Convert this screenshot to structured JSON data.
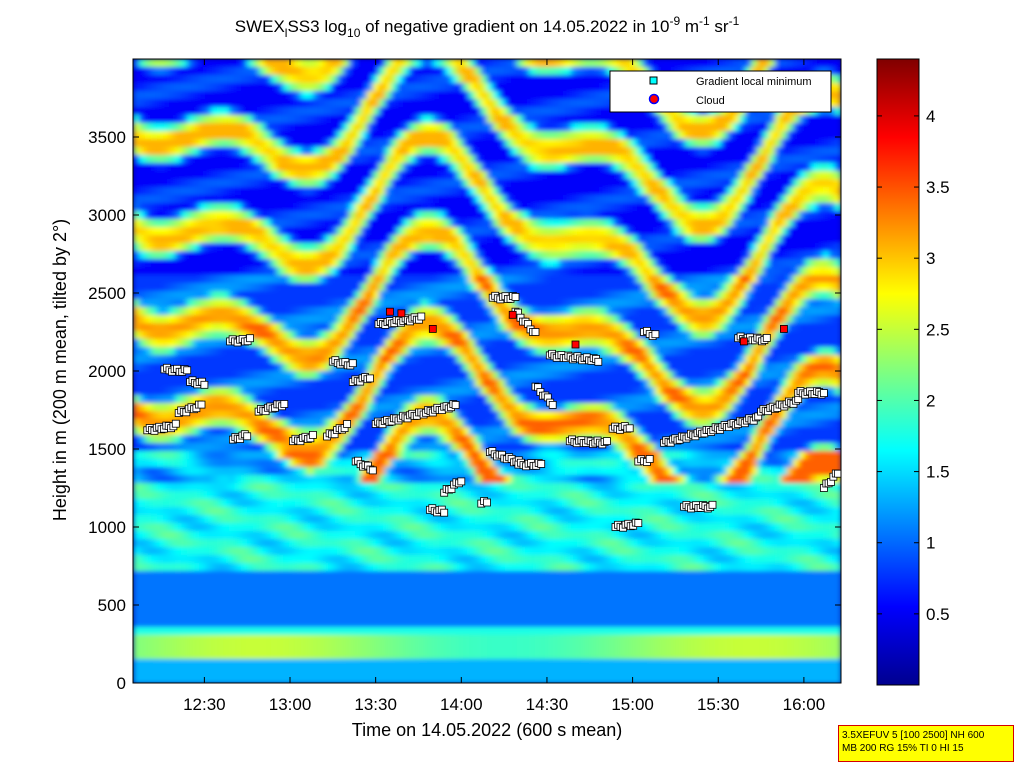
{
  "chart_data": {
    "type": "heatmap",
    "title": {
      "prefix": "SWEX",
      "sub1": "l",
      "mid1": "SS3 log",
      "sub2": "10",
      "mid2": " of negative gradient on 14.05.2022 in 10",
      "sup1": "-9",
      "mid3": " m",
      "sup2": "-1",
      "mid4": " sr",
      "sup3": "-1"
    },
    "xlabel": "Time on 14.05.2022 (600 s mean)",
    "ylabel": "Height in m (200 m mean, tilted by 2°)",
    "x_ticks": [
      "12:30",
      "13:00",
      "13:30",
      "14:00",
      "14:30",
      "15:00",
      "15:30",
      "16:00"
    ],
    "x_tick_minutes": [
      750,
      780,
      810,
      840,
      870,
      900,
      930,
      960
    ],
    "x_range_minutes": [
      725,
      973
    ],
    "y_ticks": [
      0,
      500,
      1000,
      1500,
      2000,
      2500,
      3000,
      3500
    ],
    "y_range": [
      0,
      4000
    ],
    "colorbar": {
      "ticks": [
        0.5,
        1,
        1.5,
        2,
        2.5,
        3,
        3.5,
        4
      ],
      "range": [
        0,
        4.4
      ],
      "colormap": "jet"
    },
    "legend": {
      "position": "top-right",
      "entries": [
        {
          "label": "Gradient local minimum",
          "marker": "square",
          "color": "#00ffff"
        },
        {
          "label": "Cloud",
          "marker": "circle",
          "color": "#ff0000"
        }
      ]
    },
    "gradient_minima_segments": [
      {
        "t0": 730,
        "t1": 740,
        "h0": 1620,
        "h1": 1650
      },
      {
        "t0": 736,
        "t1": 744,
        "h0": 2010,
        "h1": 2000
      },
      {
        "t0": 741,
        "t1": 749,
        "h0": 1730,
        "h1": 1780
      },
      {
        "t0": 745,
        "t1": 750,
        "h0": 1930,
        "h1": 1920
      },
      {
        "t0": 759,
        "t1": 766,
        "h0": 2190,
        "h1": 2200
      },
      {
        "t0": 760,
        "t1": 765,
        "h0": 1560,
        "h1": 1590
      },
      {
        "t0": 769,
        "t1": 778,
        "h0": 1740,
        "h1": 1790
      },
      {
        "t0": 781,
        "t1": 788,
        "h0": 1550,
        "h1": 1580
      },
      {
        "t0": 793,
        "t1": 800,
        "h0": 1580,
        "h1": 1650
      },
      {
        "t0": 795,
        "t1": 802,
        "h0": 2060,
        "h1": 2040
      },
      {
        "t0": 802,
        "t1": 808,
        "h0": 1930,
        "h1": 1960
      },
      {
        "t0": 803,
        "t1": 809,
        "h0": 1420,
        "h1": 1370
      },
      {
        "t0": 810,
        "t1": 838,
        "h0": 1660,
        "h1": 1780
      },
      {
        "t0": 811,
        "t1": 826,
        "h0": 2300,
        "h1": 2340
      },
      {
        "t0": 829,
        "t1": 834,
        "h0": 1110,
        "h1": 1100
      },
      {
        "t0": 834,
        "t1": 840,
        "h0": 1220,
        "h1": 1300
      },
      {
        "t0": 847,
        "t1": 849,
        "h0": 1150,
        "h1": 1160
      },
      {
        "t0": 850,
        "t1": 861,
        "h0": 1480,
        "h1": 1410
      },
      {
        "t0": 851,
        "t1": 859,
        "h0": 2470,
        "h1": 2470
      },
      {
        "t0": 859,
        "t1": 866,
        "h0": 2380,
        "h1": 2240
      },
      {
        "t0": 860,
        "t1": 868,
        "h0": 1400,
        "h1": 1400
      },
      {
        "t0": 866,
        "t1": 872,
        "h0": 1900,
        "h1": 1790
      },
      {
        "t0": 871,
        "t1": 888,
        "h0": 2100,
        "h1": 2070
      },
      {
        "t0": 878,
        "t1": 891,
        "h0": 1550,
        "h1": 1540
      },
      {
        "t0": 893,
        "t1": 899,
        "h0": 1630,
        "h1": 1640
      },
      {
        "t0": 894,
        "t1": 902,
        "h0": 1000,
        "h1": 1020
      },
      {
        "t0": 902,
        "t1": 906,
        "h0": 1420,
        "h1": 1430
      },
      {
        "t0": 904,
        "t1": 908,
        "h0": 2250,
        "h1": 2230
      },
      {
        "t0": 911,
        "t1": 944,
        "h0": 1540,
        "h1": 1700
      },
      {
        "t0": 918,
        "t1": 928,
        "h0": 1130,
        "h1": 1130
      },
      {
        "t0": 937,
        "t1": 947,
        "h0": 2210,
        "h1": 2200
      },
      {
        "t0": 945,
        "t1": 958,
        "h0": 1740,
        "h1": 1810
      },
      {
        "t0": 958,
        "t1": 967,
        "h0": 1860,
        "h1": 1860
      },
      {
        "t0": 967,
        "t1": 972,
        "h0": 1250,
        "h1": 1350
      }
    ],
    "cloud_points": [
      {
        "t": 815,
        "h": 2380
      },
      {
        "t": 819,
        "h": 2370
      },
      {
        "t": 830,
        "h": 2270
      },
      {
        "t": 858,
        "h": 2360
      },
      {
        "t": 880,
        "h": 2170
      },
      {
        "t": 939,
        "h": 2190
      },
      {
        "t": 953,
        "h": 2270
      }
    ]
  },
  "info_box": {
    "line1": "3.5XEFUV 5 [100 2500] NH 600",
    "line2": "MB 200 RG 15% TI 0 HI 15"
  }
}
